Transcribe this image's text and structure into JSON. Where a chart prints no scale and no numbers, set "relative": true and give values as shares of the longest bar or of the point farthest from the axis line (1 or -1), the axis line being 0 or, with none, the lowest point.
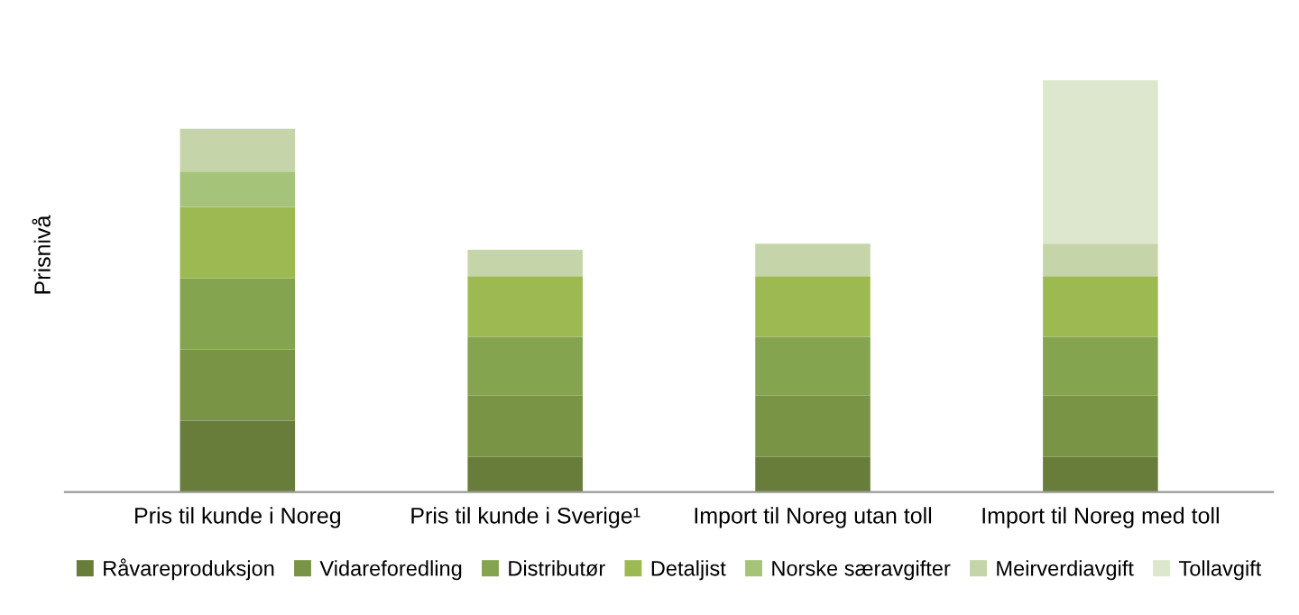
{
  "chart_data": {
    "type": "bar",
    "stacked": true,
    "relative": true,
    "ylabel": "Prisnivå",
    "legend": "bottom",
    "categories": [
      "Pris til kunde i Noreg",
      "Pris til kunde i Sverige¹",
      "Import til Noreg utan toll",
      "Import til Noreg med toll"
    ],
    "series": [
      {
        "name": "Råvareproduksjon",
        "color": "#687d3a",
        "values": [
          0.173,
          0.085,
          0.085,
          0.085
        ]
      },
      {
        "name": "Vidareforedling",
        "color": "#7a9446",
        "values": [
          0.173,
          0.149,
          0.149,
          0.149
        ]
      },
      {
        "name": "Distributør",
        "color": "#84a44f",
        "values": [
          0.173,
          0.143,
          0.143,
          0.143
        ]
      },
      {
        "name": "Detaljist",
        "color": "#9dba52",
        "values": [
          0.173,
          0.147,
          0.147,
          0.147
        ]
      },
      {
        "name": "Norske særavgifter",
        "color": "#a5c479",
        "values": [
          0.086,
          0,
          0,
          0
        ]
      },
      {
        "name": "Meirverdiavgift",
        "color": "#c5d5a9",
        "values": [
          0.104,
          0.064,
          0.079,
          0.079
        ]
      },
      {
        "name": "Tollavgift",
        "color": "#dde7cd",
        "values": [
          0,
          0,
          0,
          0.397
        ]
      }
    ]
  }
}
